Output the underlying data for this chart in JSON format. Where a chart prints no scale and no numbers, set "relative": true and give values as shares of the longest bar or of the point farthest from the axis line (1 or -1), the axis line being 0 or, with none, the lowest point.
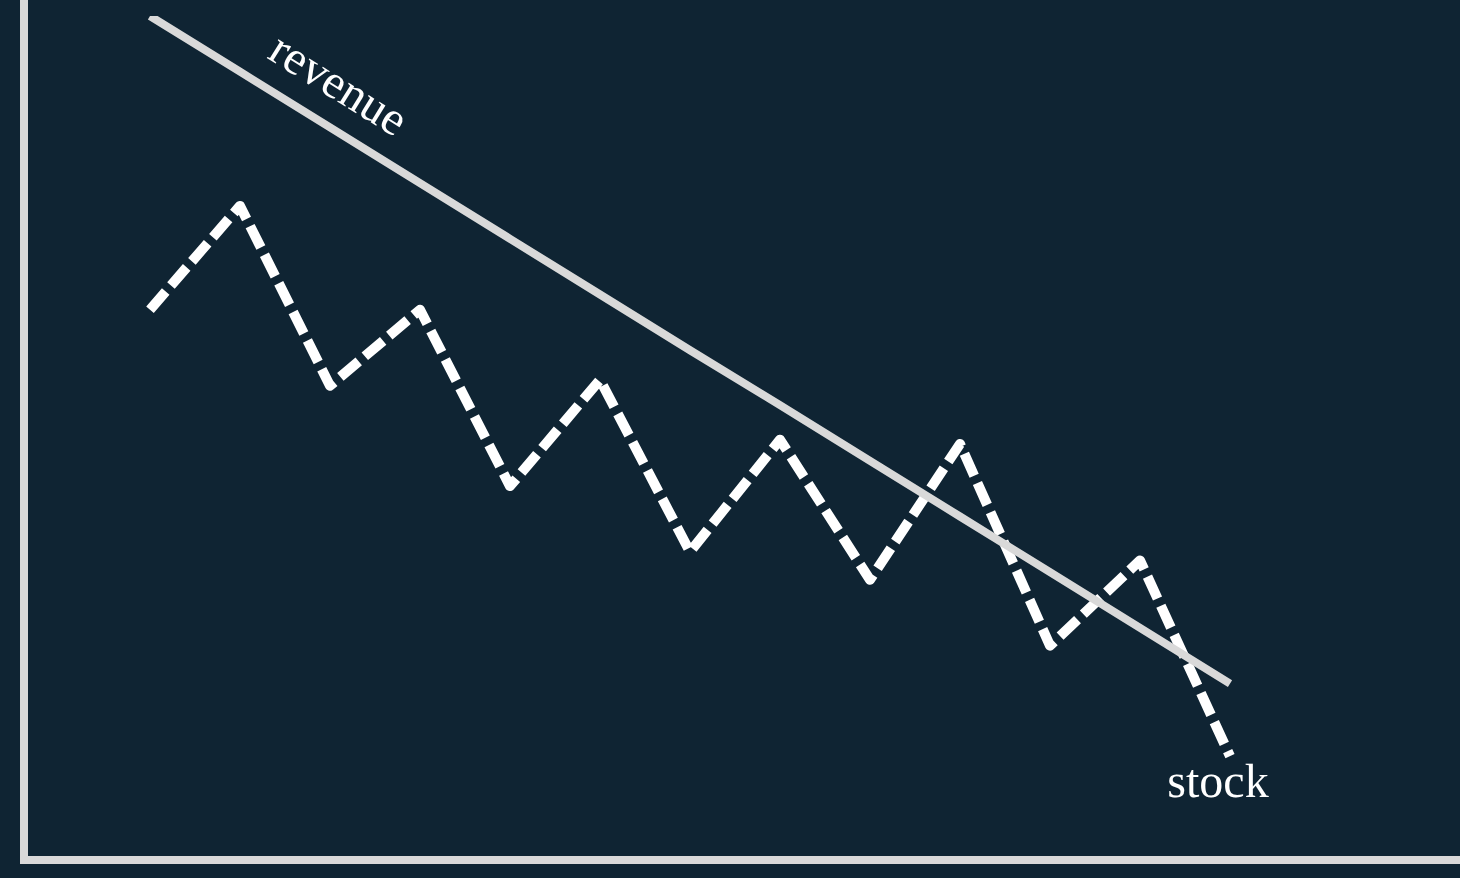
{
  "chart_data": {
    "type": "line",
    "relative": true,
    "legend": false,
    "marker": "none",
    "categories": [
      null,
      null,
      null,
      null,
      null,
      null,
      null,
      null,
      null,
      null,
      null,
      null,
      null
    ],
    "series": [
      {
        "name": "revenue",
        "color": "#d9d9d9",
        "line_style": "solid",
        "values": [
          1,
          0.934,
          0.868,
          0.802,
          0.736,
          0.67,
          0.604,
          0.539,
          0.473,
          0.407,
          0.341,
          0.275,
          0.209
        ]
      },
      {
        "name": "stock",
        "color": "#ffffff",
        "line_style": "dashed",
        "values": [
          0.652,
          0.775,
          0.562,
          0.652,
          0.443,
          0.569,
          0.365,
          0.498,
          0.332,
          0.493,
          0.254,
          0.355,
          0.123
        ]
      }
    ]
  }
}
